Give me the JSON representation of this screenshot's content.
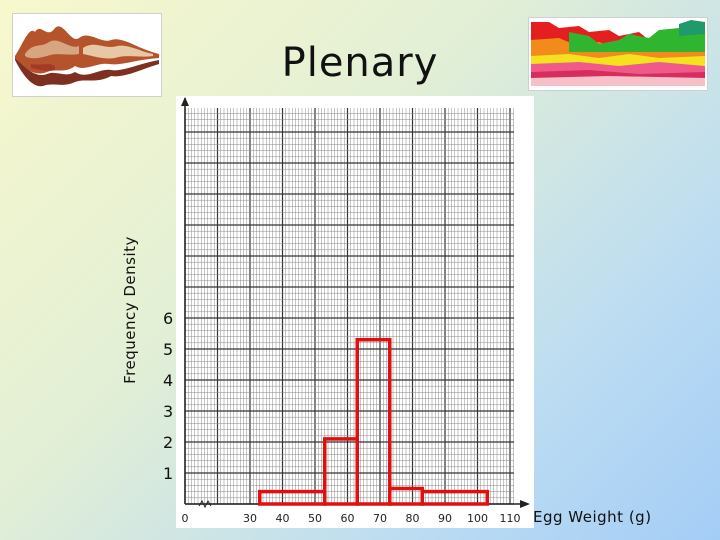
{
  "slide": {
    "title": "Plenary"
  },
  "colors": {
    "histogram": "#e01010",
    "grid_major": "#333333",
    "grid_minor": "#888888",
    "axis": "#222222"
  },
  "chart_data": {
    "type": "histogram",
    "title": "",
    "xlabel": "Egg Weight (g)",
    "ylabel": "Frequency Density",
    "x_tick_labels": [
      "0",
      "30",
      "40",
      "50",
      "60",
      "70",
      "80",
      "90",
      "100",
      "110"
    ],
    "y_tick_labels": [
      "1",
      "2",
      "3",
      "4",
      "5",
      "6"
    ],
    "grid": true,
    "bars": [
      {
        "from": 33,
        "to": 53,
        "frequency_density": 0.4
      },
      {
        "from": 53,
        "to": 63,
        "frequency_density": 2.1
      },
      {
        "from": 63,
        "to": 73,
        "frequency_density": 5.3
      },
      {
        "from": 73,
        "to": 83,
        "frequency_density": 0.5
      },
      {
        "from": 83,
        "to": 103,
        "frequency_density": 0.4
      }
    ]
  }
}
